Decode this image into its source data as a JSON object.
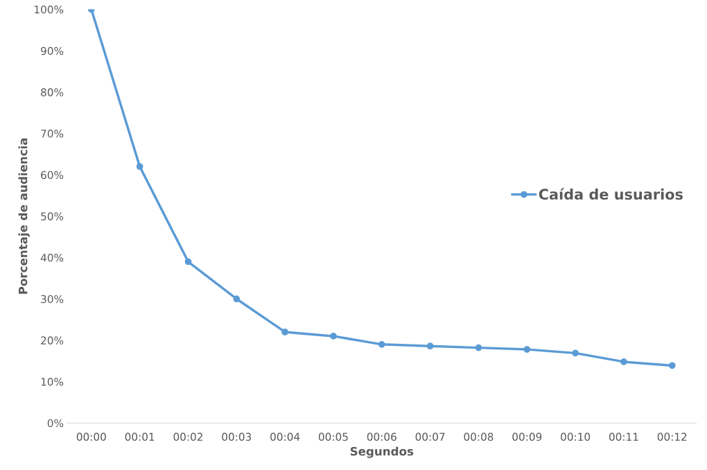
{
  "chart_data": {
    "type": "line",
    "xlabel": "Segundos",
    "ylabel": "Porcentaje de audiencia",
    "categories": [
      "00:00",
      "00:01",
      "00:02",
      "00:03",
      "00:04",
      "00:05",
      "00:06",
      "00:07",
      "00:08",
      "00:09",
      "00:10",
      "00:11",
      "00:12"
    ],
    "series": [
      {
        "name": "Caída de usuarios",
        "color": "#5b9bd5",
        "values": [
          100,
          62,
          39,
          30,
          22,
          21,
          19,
          18.6,
          18.2,
          17.8,
          16.9,
          14.8,
          13.9
        ]
      }
    ],
    "ylim": [
      0,
      100
    ],
    "yticks": [
      {
        "value": 0,
        "label": "0%"
      },
      {
        "value": 10,
        "label": "10%"
      },
      {
        "value": 20,
        "label": "20%"
      },
      {
        "value": 30,
        "label": "30%"
      },
      {
        "value": 40,
        "label": "40%"
      },
      {
        "value": 50,
        "label": "50%"
      },
      {
        "value": 60,
        "label": "60%"
      },
      {
        "value": 70,
        "label": "70%"
      },
      {
        "value": 80,
        "label": "80%"
      },
      {
        "value": 90,
        "label": "90%"
      },
      {
        "value": 100,
        "label": "100%"
      }
    ],
    "grid": false,
    "legend": "right",
    "marker": "circle",
    "line_style": "solid"
  }
}
